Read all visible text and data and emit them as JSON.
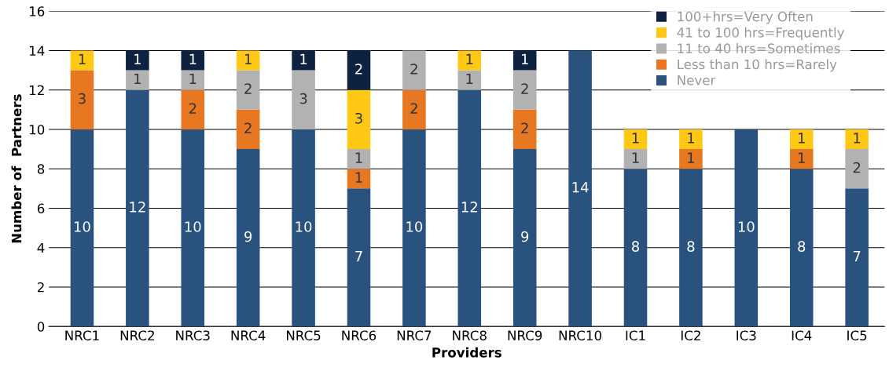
{
  "chart_data": {
    "type": "bar",
    "stacked": true,
    "xlabel": "Providers",
    "ylabel": "Number of  Partners",
    "categories": [
      "NRC1",
      "NRC2",
      "NRC3",
      "NRC4",
      "NRC5",
      "NRC6",
      "NRC7",
      "NRC8",
      "NRC9",
      "NRC10",
      "IC1",
      "IC2",
      "IC3",
      "IC4",
      "IC5"
    ],
    "series": [
      {
        "name": "Never",
        "color": "#2a527f",
        "values": [
          10,
          12,
          10,
          9,
          10,
          7,
          10,
          12,
          9,
          14,
          8,
          8,
          10,
          8,
          7
        ],
        "value_labels": [
          "10",
          "12",
          "10",
          "9",
          "10",
          "7",
          "10",
          "12",
          "9",
          "14",
          "8",
          "8",
          "10",
          "8",
          "7"
        ]
      },
      {
        "name": "Less than 10 hrs=Rarely",
        "color": "#e87722",
        "values": [
          3,
          0,
          2,
          2,
          0,
          1,
          2,
          0,
          2,
          0,
          0,
          1,
          0,
          1,
          0
        ],
        "value_labels": [
          "3",
          null,
          "2",
          "2",
          null,
          "1",
          "2",
          null,
          "2",
          null,
          null,
          "1",
          null,
          "1",
          null
        ]
      },
      {
        "name": "11 to 40 hrs=Sometimes",
        "color": "#b2b2b2",
        "values": [
          0,
          1,
          1,
          2,
          3,
          1,
          2,
          1,
          2,
          0,
          1,
          0,
          0,
          0,
          2
        ],
        "value_labels": [
          null,
          "1",
          "1",
          "2",
          "3",
          "1",
          "2",
          "1",
          "2",
          null,
          "1",
          null,
          null,
          null,
          "2"
        ]
      },
      {
        "name": "41 to 100 hrs=Frequently",
        "color": "#ffc815",
        "values": [
          1,
          0,
          0,
          1,
          0,
          3,
          0,
          1,
          0,
          0,
          1,
          1,
          0,
          1,
          1
        ],
        "value_labels": [
          "1",
          null,
          null,
          "1",
          null,
          "3",
          null,
          "1",
          null,
          null,
          "1",
          "1",
          null,
          "1",
          "1"
        ]
      },
      {
        "name": "100+hrs=Very Often",
        "color": "#0d2240",
        "values": [
          0,
          1,
          1,
          0,
          1,
          2,
          0,
          0,
          1,
          0,
          0,
          0,
          0,
          0,
          0
        ],
        "value_labels": [
          null,
          "1",
          "1",
          null,
          "1",
          "2",
          null,
          null,
          "1",
          null,
          null,
          null,
          null,
          null,
          null
        ]
      }
    ],
    "ylim": [
      0,
      16
    ],
    "yticks": [
      0,
      2,
      4,
      6,
      8,
      10,
      12,
      14,
      16
    ],
    "grid": "y",
    "legend": "top right"
  }
}
